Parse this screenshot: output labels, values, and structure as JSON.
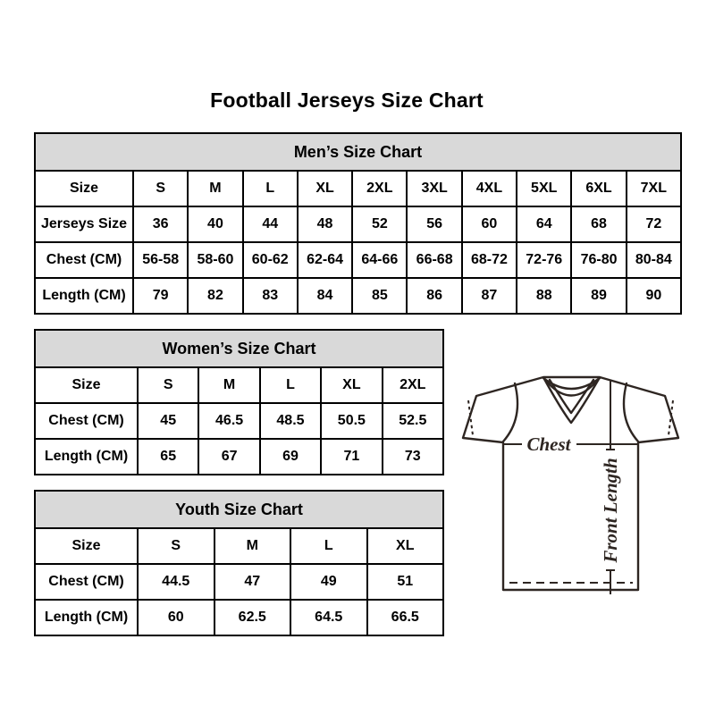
{
  "title": "Football Jerseys Size Chart",
  "tables": [
    {
      "id": "mens",
      "title": "Men’s Size Chart",
      "rows": [
        [
          "Size",
          "S",
          "M",
          "L",
          "XL",
          "2XL",
          "3XL",
          "4XL",
          "5XL",
          "6XL",
          "7XL"
        ],
        [
          "Jerseys Size",
          "36",
          "40",
          "44",
          "48",
          "52",
          "56",
          "60",
          "64",
          "68",
          "72"
        ],
        [
          "Chest (CM)",
          "56-58",
          "58-60",
          "60-62",
          "62-64",
          "64-66",
          "66-68",
          "68-72",
          "72-76",
          "76-80",
          "80-84"
        ],
        [
          "Length (CM)",
          "79",
          "82",
          "83",
          "84",
          "85",
          "86",
          "87",
          "88",
          "89",
          "90"
        ]
      ]
    },
    {
      "id": "womens",
      "title": "Women’s Size Chart",
      "rows": [
        [
          "Size",
          "S",
          "M",
          "L",
          "XL",
          "2XL"
        ],
        [
          "Chest (CM)",
          "45",
          "46.5",
          "48.5",
          "50.5",
          "52.5"
        ],
        [
          "Length (CM)",
          "65",
          "67",
          "69",
          "71",
          "73"
        ]
      ]
    },
    {
      "id": "youth",
      "title": "Youth Size Chart",
      "rows": [
        [
          "Size",
          "S",
          "M",
          "L",
          "XL"
        ],
        [
          "Chest (CM)",
          "44.5",
          "47",
          "49",
          "51"
        ],
        [
          "Length (CM)",
          "60",
          "62.5",
          "64.5",
          "66.5"
        ]
      ]
    }
  ],
  "diagram": {
    "chest_label": "Chest",
    "front_length_label": "Front Length"
  },
  "colors": {
    "header_bg": "#d9d9d9",
    "table_border": "#000000",
    "text": "#000000",
    "diagram_stroke": "#2e2622"
  }
}
